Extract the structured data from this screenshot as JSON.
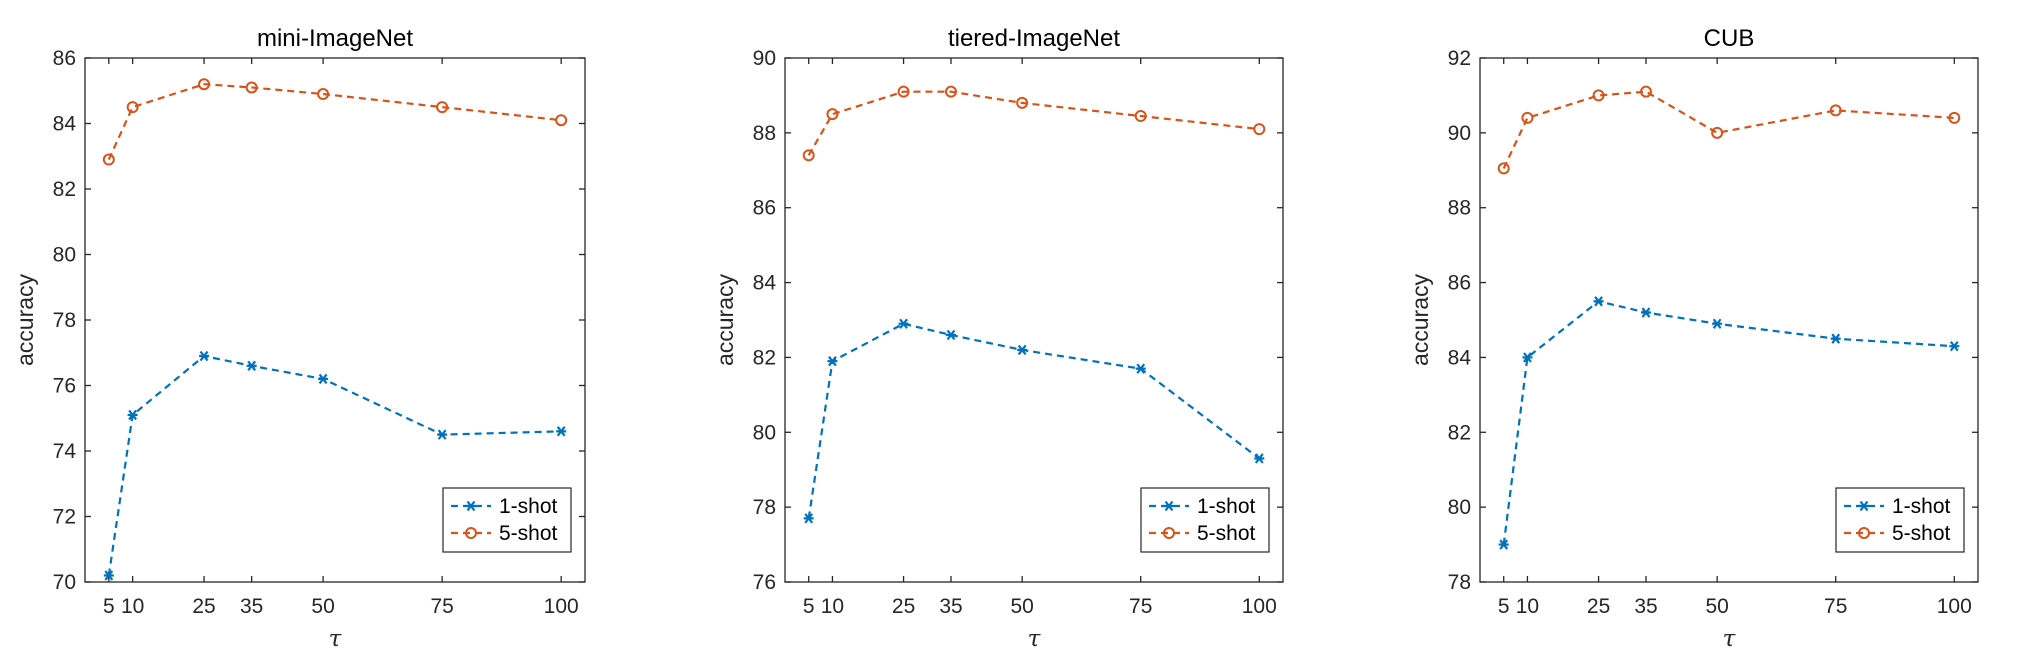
{
  "chart_data": [
    {
      "type": "line",
      "title": "mini-ImageNet",
      "xlabel": "τ",
      "ylabel": "accuracy",
      "x": [
        5,
        10,
        25,
        35,
        50,
        75,
        100
      ],
      "xticks": [
        5,
        10,
        25,
        35,
        50,
        75,
        100
      ],
      "xlim": [
        0,
        105
      ],
      "ylim": [
        70,
        86
      ],
      "yticks": [
        70,
        72,
        74,
        76,
        78,
        80,
        82,
        84,
        86
      ],
      "grid": false,
      "legend_position": "bottom-right",
      "series": [
        {
          "name": "1-shot",
          "color": "#0072BD",
          "marker": "asterisk",
          "values": [
            70.2,
            75.1,
            76.9,
            76.6,
            76.2,
            74.5,
            74.6
          ]
        },
        {
          "name": "5-shot",
          "color": "#D95319",
          "marker": "circle",
          "values": [
            82.9,
            84.5,
            85.2,
            85.1,
            84.9,
            84.5,
            84.1
          ]
        }
      ]
    },
    {
      "type": "line",
      "title": "tiered-ImageNet",
      "xlabel": "τ",
      "ylabel": "accuracy",
      "x": [
        5,
        10,
        25,
        35,
        50,
        75,
        100
      ],
      "xticks": [
        5,
        10,
        25,
        35,
        50,
        75,
        100
      ],
      "xlim": [
        0,
        105
      ],
      "ylim": [
        76,
        90
      ],
      "yticks": [
        76,
        78,
        80,
        82,
        84,
        86,
        88,
        90
      ],
      "grid": false,
      "legend_position": "bottom-right",
      "series": [
        {
          "name": "1-shot",
          "color": "#0072BD",
          "marker": "asterisk",
          "values": [
            77.7,
            81.9,
            82.9,
            82.6,
            82.2,
            81.7,
            79.3
          ]
        },
        {
          "name": "5-shot",
          "color": "#D95319",
          "marker": "circle",
          "values": [
            87.4,
            88.5,
            89.1,
            89.1,
            88.8,
            88.45,
            88.1
          ]
        }
      ]
    },
    {
      "type": "line",
      "title": "CUB",
      "xlabel": "τ",
      "ylabel": "accuracy",
      "x": [
        5,
        10,
        25,
        35,
        50,
        75,
        100
      ],
      "xticks": [
        5,
        10,
        25,
        35,
        50,
        75,
        100
      ],
      "xlim": [
        0,
        105
      ],
      "ylim": [
        78,
        92
      ],
      "yticks": [
        78,
        80,
        82,
        84,
        86,
        88,
        90,
        92
      ],
      "grid": false,
      "legend_position": "bottom-right",
      "series": [
        {
          "name": "1-shot",
          "color": "#0072BD",
          "marker": "asterisk",
          "values": [
            79.0,
            84.0,
            85.5,
            85.2,
            84.9,
            84.5,
            84.3
          ]
        },
        {
          "name": "5-shot",
          "color": "#D95319",
          "marker": "circle",
          "values": [
            89.05,
            90.4,
            91.0,
            91.1,
            90.0,
            90.6,
            90.4
          ]
        }
      ]
    }
  ]
}
